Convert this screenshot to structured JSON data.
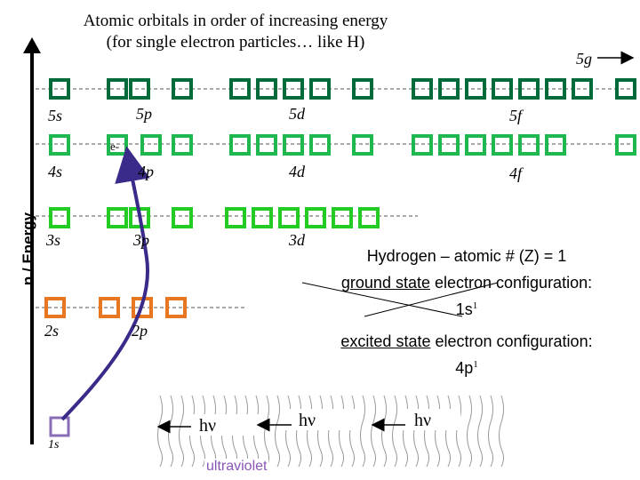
{
  "title_line1": "Atomic orbitals in order of increasing energy",
  "title_line2": "(for single electron particles… like H)",
  "y_axis_label": "n / Energy",
  "orbitals": {
    "s5": "5s",
    "p5": "5p",
    "d5": "5d",
    "f5": "5f",
    "g5": "5g",
    "s4": "4s",
    "p4": "4p",
    "d4": "4d",
    "f4": "4f",
    "s3": "3s",
    "p3": "3p",
    "d3": "3d",
    "s2": "2s",
    "p2": "2p",
    "s1": "1s"
  },
  "electron_label": "e-",
  "hydrogen_line": "Hydrogen – atomic # (Z) = 1",
  "ground_label": "ground state",
  "ground_rest": " electron configuration:",
  "ground_config": "1s",
  "ground_sup": "1",
  "excited_label": "excited state",
  "excited_rest": " electron configuration:",
  "excited_config": "4p",
  "excited_sup": "1",
  "photon_label": "hν",
  "ultraviolet_label": "ultraviolet",
  "colors": {
    "n5": "#006b3a",
    "n4": "#1fb84f",
    "n3": "#22cc22",
    "n2": "#e87722",
    "n1": "#8a6bb5",
    "arrow": "#3a2a8a",
    "uv": "#8a55b5"
  }
}
